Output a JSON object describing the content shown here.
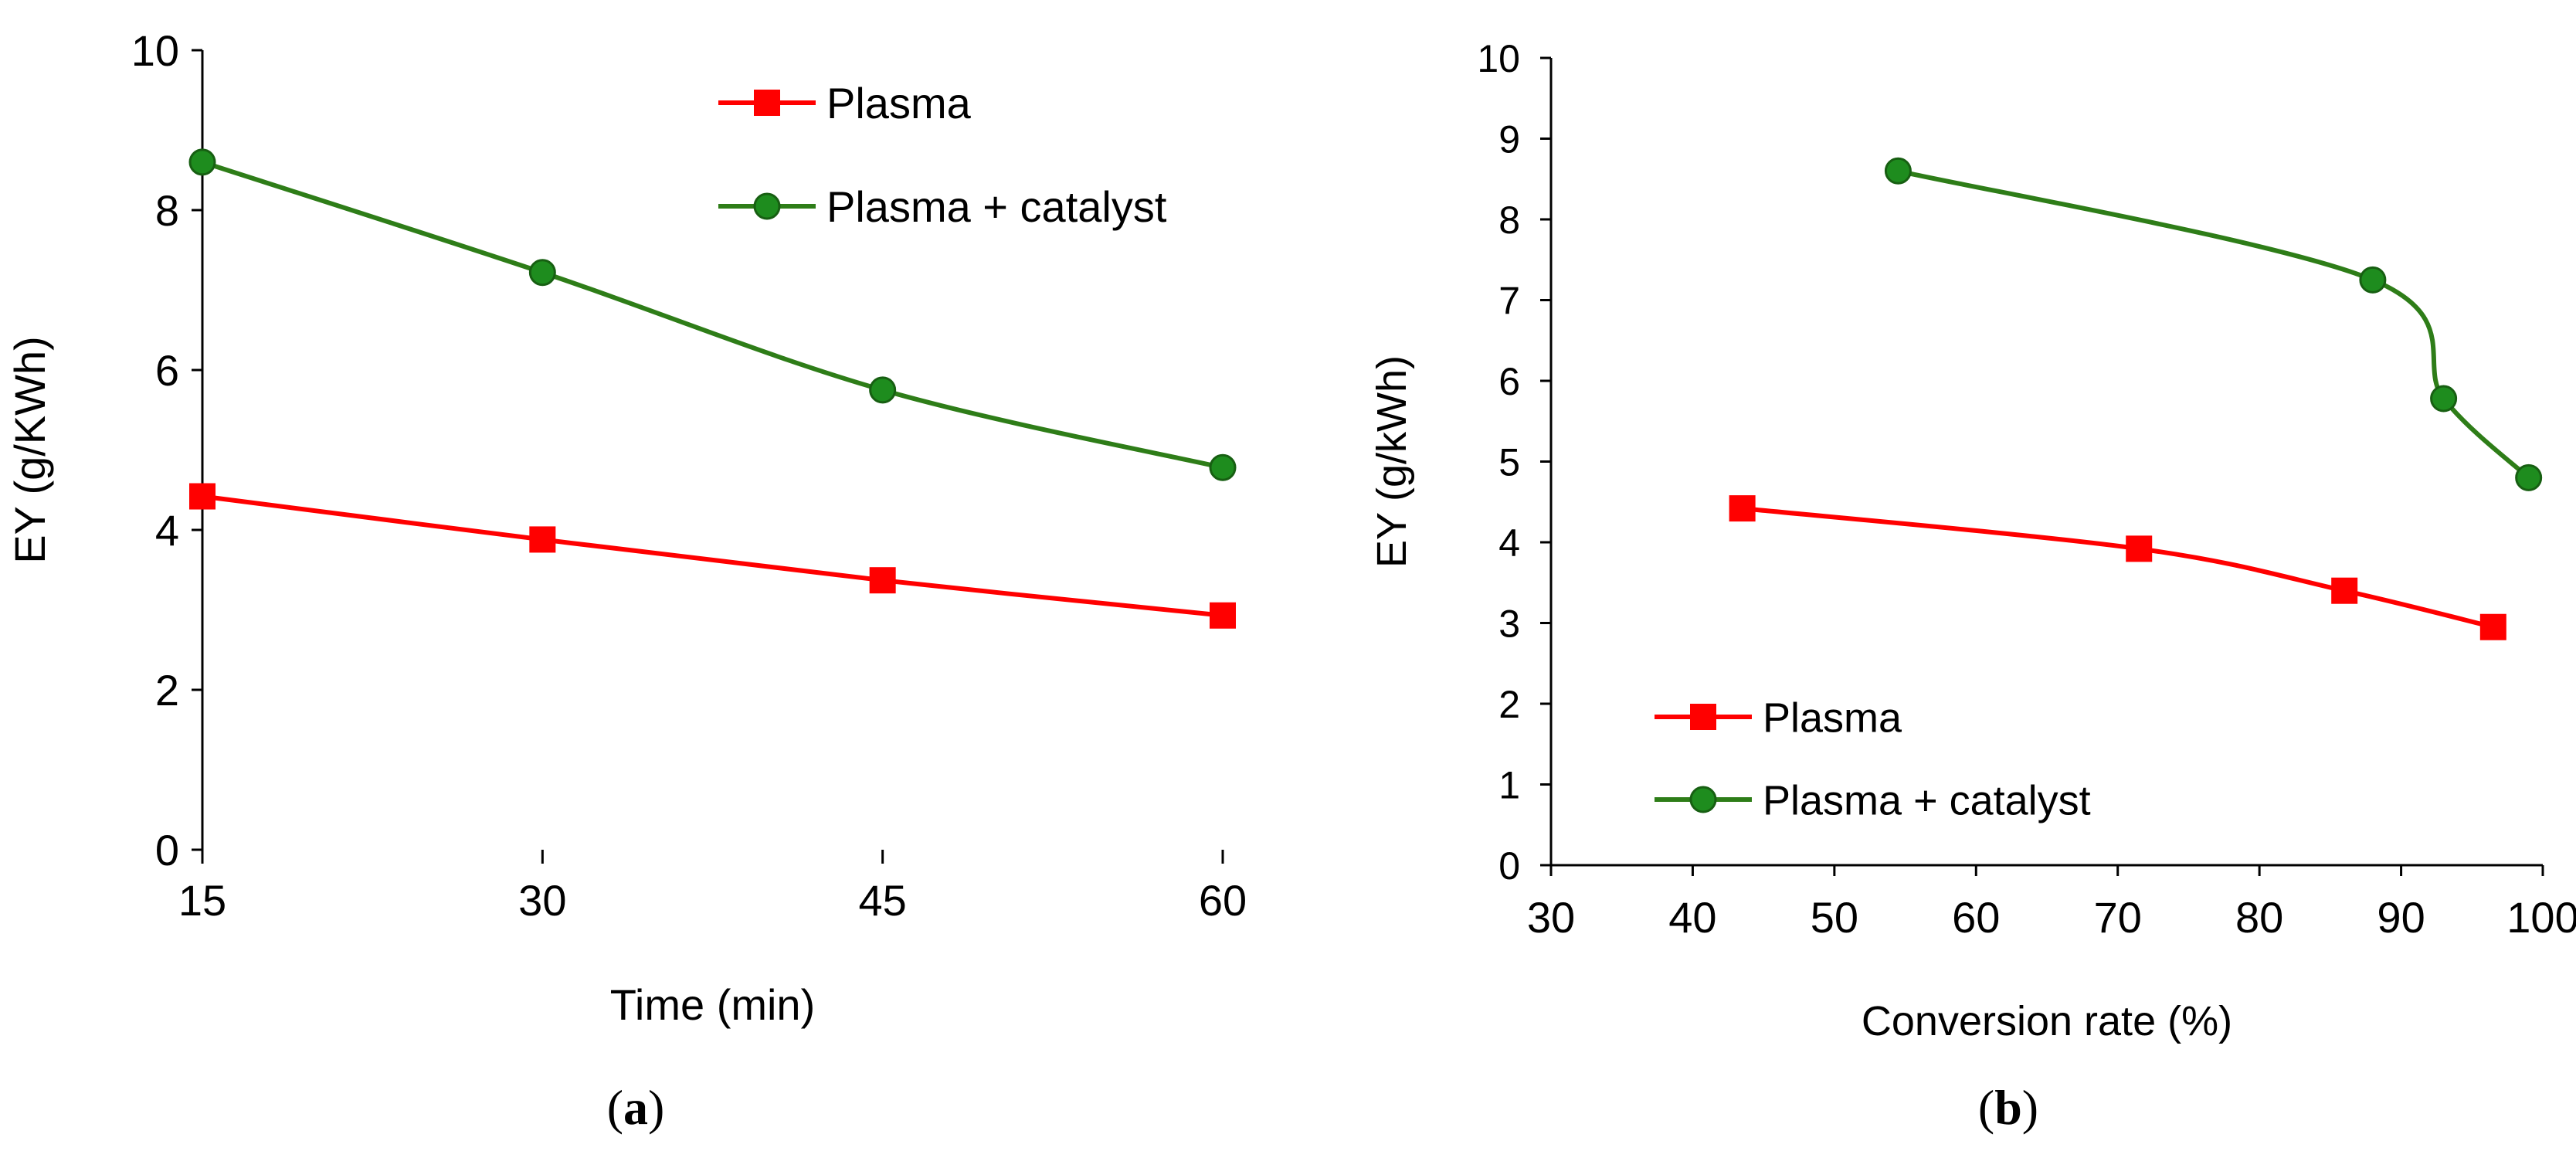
{
  "colors": {
    "plasma": "#ff0000",
    "plasma_catalyst": "#2e7d18",
    "catalyst_marker": "#1e8c1e",
    "axis": "#000000"
  },
  "chart_data": [
    {
      "type": "line",
      "panel": "(a)",
      "panel_letter": "a",
      "title": "",
      "xlabel": "Time (min)",
      "ylabel": "EY (g/KWh)",
      "x": [
        15,
        30,
        45,
        60
      ],
      "x_ticks": [
        15,
        30,
        45,
        60
      ],
      "x_tick_labels": [
        "15",
        "30",
        "45",
        "60"
      ],
      "xlim": [
        15,
        60
      ],
      "y_ticks": [
        0,
        2,
        4,
        6,
        8,
        10
      ],
      "y_tick_labels": [
        "0",
        "2",
        "4",
        "6",
        "8",
        "10"
      ],
      "ylim": [
        0,
        10
      ],
      "grid": false,
      "legend_position": "top-right",
      "series": [
        {
          "name": "Plasma",
          "marker": "square",
          "color_key": "plasma",
          "values": [
            4.42,
            3.88,
            3.37,
            2.93
          ]
        },
        {
          "name": "Plasma + catalyst",
          "marker": "circle",
          "color_key": "plasma_catalyst",
          "values": [
            8.6,
            7.22,
            5.75,
            4.78
          ]
        }
      ]
    },
    {
      "type": "line",
      "panel": "(b)",
      "panel_letter": "b",
      "title": "",
      "xlabel": "Conversion rate (%)",
      "ylabel": "EY (g/kWh)",
      "x_ticks": [
        30,
        40,
        50,
        60,
        70,
        80,
        90,
        100
      ],
      "x_tick_labels": [
        "30",
        "40",
        "50",
        "60",
        "70",
        "80",
        "90",
        "100"
      ],
      "xlim": [
        30,
        100
      ],
      "y_ticks": [
        0,
        1,
        2,
        3,
        4,
        5,
        6,
        7,
        8,
        9,
        10
      ],
      "y_tick_labels": [
        "0",
        "1",
        "2",
        "3",
        "4",
        "5",
        "6",
        "7",
        "8",
        "9",
        "10"
      ],
      "ylim": [
        0,
        10
      ],
      "grid": false,
      "legend_position": "bottom-left",
      "series": [
        {
          "name": "Plasma",
          "marker": "square",
          "color_key": "plasma",
          "x": [
            43.5,
            71.5,
            86.0,
            96.5
          ],
          "values": [
            4.42,
            3.92,
            3.4,
            2.95
          ]
        },
        {
          "name": "Plasma + catalyst",
          "marker": "circle",
          "color_key": "plasma_catalyst",
          "x": [
            54.5,
            88.0,
            93.0,
            99.0
          ],
          "values": [
            8.6,
            7.25,
            5.78,
            4.8
          ]
        }
      ]
    }
  ]
}
